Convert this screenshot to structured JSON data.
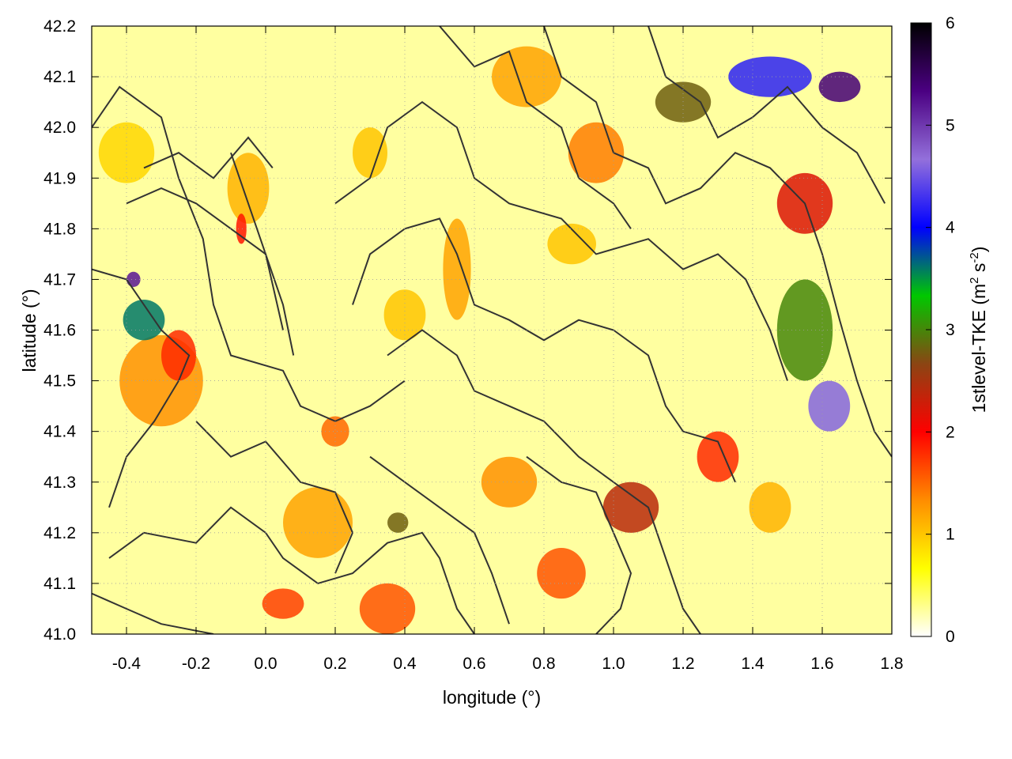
{
  "chart_data": {
    "type": "heatmap",
    "title": "",
    "xlabel": "longitude (°)",
    "ylabel": "latitude (°)",
    "colorbar_label": "1stlevel-TKE (m",
    "colorbar_label_sup1": "2",
    "colorbar_label_mid": " s",
    "colorbar_label_sup2": "-2",
    "colorbar_label_end": ")",
    "xlim": [
      -0.5,
      1.8
    ],
    "ylim": [
      41.0,
      42.2
    ],
    "clim": [
      0,
      6
    ],
    "x_ticks": [
      -0.4,
      -0.2,
      0.0,
      0.2,
      0.4,
      0.6,
      0.8,
      1.0,
      1.2,
      1.4,
      1.6,
      1.8
    ],
    "x_tick_labels": [
      "-0.4",
      "-0.2",
      "0.0",
      "0.2",
      "0.4",
      "0.6",
      "0.8",
      "1.0",
      "1.2",
      "1.4",
      "1.6",
      "1.8"
    ],
    "y_ticks": [
      41.0,
      41.1,
      41.2,
      41.3,
      41.4,
      41.5,
      41.6,
      41.7,
      41.8,
      41.9,
      42.0,
      42.1,
      42.2
    ],
    "y_tick_labels": [
      "41.0",
      "41.1",
      "41.2",
      "41.3",
      "41.4",
      "41.5",
      "41.6",
      "41.7",
      "41.8",
      "41.9",
      "42.0",
      "42.1",
      "42.2"
    ],
    "colorbar_ticks": [
      0,
      1,
      2,
      3,
      4,
      5,
      6
    ],
    "colorbar_tick_labels": [
      "0",
      "1",
      "2",
      "3",
      "4",
      "5",
      "6"
    ],
    "colormap": [
      "#ffffff",
      "#ffff00",
      "#ff8c00",
      "#ff0000",
      "#8b4513",
      "#00c800",
      "#0000ff",
      "#9370db",
      "#4b0082",
      "#000000"
    ],
    "grid": true,
    "blobs": [
      {
        "lon": -0.3,
        "lat": 41.5,
        "v": 1.3,
        "rx": 0.12,
        "ry": 0.09
      },
      {
        "lon": -0.35,
        "lat": 41.62,
        "v": 3.6,
        "rx": 0.06,
        "ry": 0.04
      },
      {
        "lon": -0.38,
        "lat": 41.7,
        "v": 5.2,
        "rx": 0.02,
        "ry": 0.015
      },
      {
        "lon": -0.25,
        "lat": 41.55,
        "v": 1.8,
        "rx": 0.05,
        "ry": 0.05
      },
      {
        "lon": -0.05,
        "lat": 41.88,
        "v": 1.1,
        "rx": 0.06,
        "ry": 0.07
      },
      {
        "lon": -0.07,
        "lat": 41.8,
        "v": 1.9,
        "rx": 0.015,
        "ry": 0.03
      },
      {
        "lon": -0.4,
        "lat": 41.95,
        "v": 0.9,
        "rx": 0.08,
        "ry": 0.06
      },
      {
        "lon": 0.15,
        "lat": 41.22,
        "v": 1.2,
        "rx": 0.1,
        "ry": 0.07
      },
      {
        "lon": 0.35,
        "lat": 41.05,
        "v": 1.6,
        "rx": 0.08,
        "ry": 0.05
      },
      {
        "lon": 0.05,
        "lat": 41.06,
        "v": 1.7,
        "rx": 0.06,
        "ry": 0.03
      },
      {
        "lon": 0.38,
        "lat": 41.22,
        "v": 2.8,
        "rx": 0.03,
        "ry": 0.02
      },
      {
        "lon": 0.55,
        "lat": 41.72,
        "v": 1.2,
        "rx": 0.04,
        "ry": 0.1
      },
      {
        "lon": 0.4,
        "lat": 41.63,
        "v": 1.0,
        "rx": 0.06,
        "ry": 0.05
      },
      {
        "lon": 0.88,
        "lat": 41.77,
        "v": 1.0,
        "rx": 0.07,
        "ry": 0.04
      },
      {
        "lon": 0.3,
        "lat": 41.95,
        "v": 1.0,
        "rx": 0.05,
        "ry": 0.05
      },
      {
        "lon": 1.45,
        "lat": 42.1,
        "v": 4.2,
        "rx": 0.12,
        "ry": 0.04
      },
      {
        "lon": 1.65,
        "lat": 42.08,
        "v": 5.4,
        "rx": 0.06,
        "ry": 0.03
      },
      {
        "lon": 1.2,
        "lat": 42.05,
        "v": 2.8,
        "rx": 0.08,
        "ry": 0.04
      },
      {
        "lon": 1.55,
        "lat": 41.6,
        "v": 3.0,
        "rx": 0.08,
        "ry": 0.1
      },
      {
        "lon": 1.62,
        "lat": 41.45,
        "v": 4.6,
        "rx": 0.06,
        "ry": 0.05
      },
      {
        "lon": 1.55,
        "lat": 41.85,
        "v": 2.2,
        "rx": 0.08,
        "ry": 0.06
      },
      {
        "lon": 1.3,
        "lat": 41.35,
        "v": 1.8,
        "rx": 0.06,
        "ry": 0.05
      },
      {
        "lon": 1.05,
        "lat": 41.25,
        "v": 2.4,
        "rx": 0.08,
        "ry": 0.05
      },
      {
        "lon": 0.85,
        "lat": 41.12,
        "v": 1.6,
        "rx": 0.07,
        "ry": 0.05
      },
      {
        "lon": 0.7,
        "lat": 41.3,
        "v": 1.3,
        "rx": 0.08,
        "ry": 0.05
      },
      {
        "lon": 1.45,
        "lat": 41.25,
        "v": 1.1,
        "rx": 0.06,
        "ry": 0.05
      },
      {
        "lon": 0.2,
        "lat": 41.4,
        "v": 1.5,
        "rx": 0.04,
        "ry": 0.03
      },
      {
        "lon": 0.75,
        "lat": 42.1,
        "v": 1.2,
        "rx": 0.1,
        "ry": 0.06
      },
      {
        "lon": 0.95,
        "lat": 41.95,
        "v": 1.4,
        "rx": 0.08,
        "ry": 0.06
      }
    ],
    "contours": [
      [
        [
          -0.5,
          42.0
        ],
        [
          -0.42,
          42.08
        ],
        [
          -0.3,
          42.02
        ],
        [
          -0.25,
          41.9
        ],
        [
          -0.18,
          41.78
        ],
        [
          -0.15,
          41.65
        ],
        [
          -0.1,
          41.55
        ],
        [
          0.05,
          41.52
        ],
        [
          0.1,
          41.45
        ],
        [
          0.2,
          41.42
        ],
        [
          0.3,
          41.45
        ],
        [
          0.4,
          41.5
        ]
      ],
      [
        [
          -0.5,
          41.72
        ],
        [
          -0.4,
          41.7
        ],
        [
          -0.3,
          41.6
        ],
        [
          -0.22,
          41.55
        ],
        [
          -0.25,
          41.5
        ],
        [
          -0.32,
          41.42
        ],
        [
          -0.4,
          41.35
        ],
        [
          -0.45,
          41.25
        ]
      ],
      [
        [
          -0.4,
          41.85
        ],
        [
          -0.3,
          41.88
        ],
        [
          -0.2,
          41.85
        ],
        [
          -0.1,
          41.8
        ],
        [
          0.0,
          41.75
        ],
        [
          0.05,
          41.65
        ],
        [
          0.08,
          41.55
        ]
      ],
      [
        [
          -0.35,
          41.92
        ],
        [
          -0.25,
          41.95
        ],
        [
          -0.15,
          41.9
        ],
        [
          -0.05,
          41.98
        ],
        [
          0.02,
          41.92
        ]
      ],
      [
        [
          -0.1,
          41.95
        ],
        [
          -0.05,
          41.85
        ],
        [
          0.0,
          41.75
        ],
        [
          0.05,
          41.6
        ]
      ],
      [
        [
          0.2,
          41.85
        ],
        [
          0.3,
          41.9
        ],
        [
          0.35,
          42.0
        ],
        [
          0.45,
          42.05
        ],
        [
          0.55,
          42.0
        ],
        [
          0.6,
          41.9
        ],
        [
          0.7,
          41.85
        ],
        [
          0.85,
          41.82
        ],
        [
          0.95,
          41.75
        ],
        [
          1.1,
          41.78
        ],
        [
          1.2,
          41.72
        ],
        [
          1.3,
          41.75
        ],
        [
          1.38,
          41.7
        ],
        [
          1.45,
          41.6
        ],
        [
          1.5,
          41.5
        ]
      ],
      [
        [
          0.25,
          41.65
        ],
        [
          0.3,
          41.75
        ],
        [
          0.4,
          41.8
        ],
        [
          0.5,
          41.82
        ],
        [
          0.55,
          41.75
        ],
        [
          0.6,
          41.65
        ],
        [
          0.7,
          41.62
        ],
        [
          0.8,
          41.58
        ],
        [
          0.9,
          41.62
        ],
        [
          1.0,
          41.6
        ],
        [
          1.1,
          41.55
        ],
        [
          1.15,
          41.45
        ],
        [
          1.2,
          41.4
        ],
        [
          1.3,
          41.38
        ],
        [
          1.35,
          41.3
        ]
      ],
      [
        [
          0.35,
          41.55
        ],
        [
          0.45,
          41.6
        ],
        [
          0.55,
          41.55
        ],
        [
          0.6,
          41.48
        ],
        [
          0.7,
          41.45
        ],
        [
          0.8,
          41.42
        ],
        [
          0.9,
          41.35
        ],
        [
          1.0,
          41.3
        ],
        [
          1.1,
          41.25
        ],
        [
          1.15,
          41.15
        ],
        [
          1.2,
          41.05
        ],
        [
          1.25,
          41.0
        ]
      ],
      [
        [
          -0.45,
          41.15
        ],
        [
          -0.35,
          41.2
        ],
        [
          -0.2,
          41.18
        ],
        [
          -0.1,
          41.25
        ],
        [
          0.0,
          41.2
        ],
        [
          0.05,
          41.15
        ],
        [
          0.15,
          41.1
        ],
        [
          0.25,
          41.12
        ],
        [
          0.35,
          41.18
        ],
        [
          0.45,
          41.2
        ],
        [
          0.5,
          41.15
        ],
        [
          0.55,
          41.05
        ],
        [
          0.6,
          41.0
        ]
      ],
      [
        [
          -0.5,
          41.08
        ],
        [
          -0.4,
          41.05
        ],
        [
          -0.3,
          41.02
        ],
        [
          -0.15,
          41.0
        ]
      ],
      [
        [
          0.3,
          41.35
        ],
        [
          0.4,
          41.3
        ],
        [
          0.5,
          41.25
        ],
        [
          0.6,
          41.2
        ],
        [
          0.65,
          41.12
        ],
        [
          0.7,
          41.02
        ]
      ],
      [
        [
          0.75,
          41.35
        ],
        [
          0.85,
          41.3
        ],
        [
          0.95,
          41.28
        ],
        [
          1.0,
          41.2
        ],
        [
          1.05,
          41.12
        ],
        [
          1.02,
          41.05
        ],
        [
          0.95,
          41.0
        ]
      ],
      [
        [
          0.8,
          42.2
        ],
        [
          0.85,
          42.1
        ],
        [
          0.95,
          42.05
        ],
        [
          1.0,
          41.95
        ],
        [
          1.1,
          41.92
        ],
        [
          1.15,
          41.85
        ],
        [
          1.25,
          41.88
        ],
        [
          1.35,
          41.95
        ],
        [
          1.45,
          41.92
        ],
        [
          1.55,
          41.85
        ],
        [
          1.6,
          41.75
        ],
        [
          1.65,
          41.62
        ],
        [
          1.7,
          41.5
        ],
        [
          1.75,
          41.4
        ],
        [
          1.8,
          41.35
        ]
      ],
      [
        [
          0.5,
          42.2
        ],
        [
          0.6,
          42.12
        ],
        [
          0.7,
          42.15
        ],
        [
          0.75,
          42.05
        ],
        [
          0.85,
          42.0
        ],
        [
          0.9,
          41.9
        ],
        [
          1.0,
          41.85
        ],
        [
          1.05,
          41.8
        ]
      ],
      [
        [
          1.1,
          42.2
        ],
        [
          1.15,
          42.1
        ],
        [
          1.25,
          42.05
        ],
        [
          1.3,
          41.98
        ],
        [
          1.4,
          42.02
        ],
        [
          1.5,
          42.08
        ],
        [
          1.6,
          42.0
        ],
        [
          1.7,
          41.95
        ],
        [
          1.78,
          41.85
        ]
      ],
      [
        [
          -0.2,
          41.42
        ],
        [
          -0.1,
          41.35
        ],
        [
          0.0,
          41.38
        ],
        [
          0.1,
          41.3
        ],
        [
          0.2,
          41.28
        ],
        [
          0.25,
          41.2
        ],
        [
          0.2,
          41.12
        ]
      ]
    ]
  }
}
